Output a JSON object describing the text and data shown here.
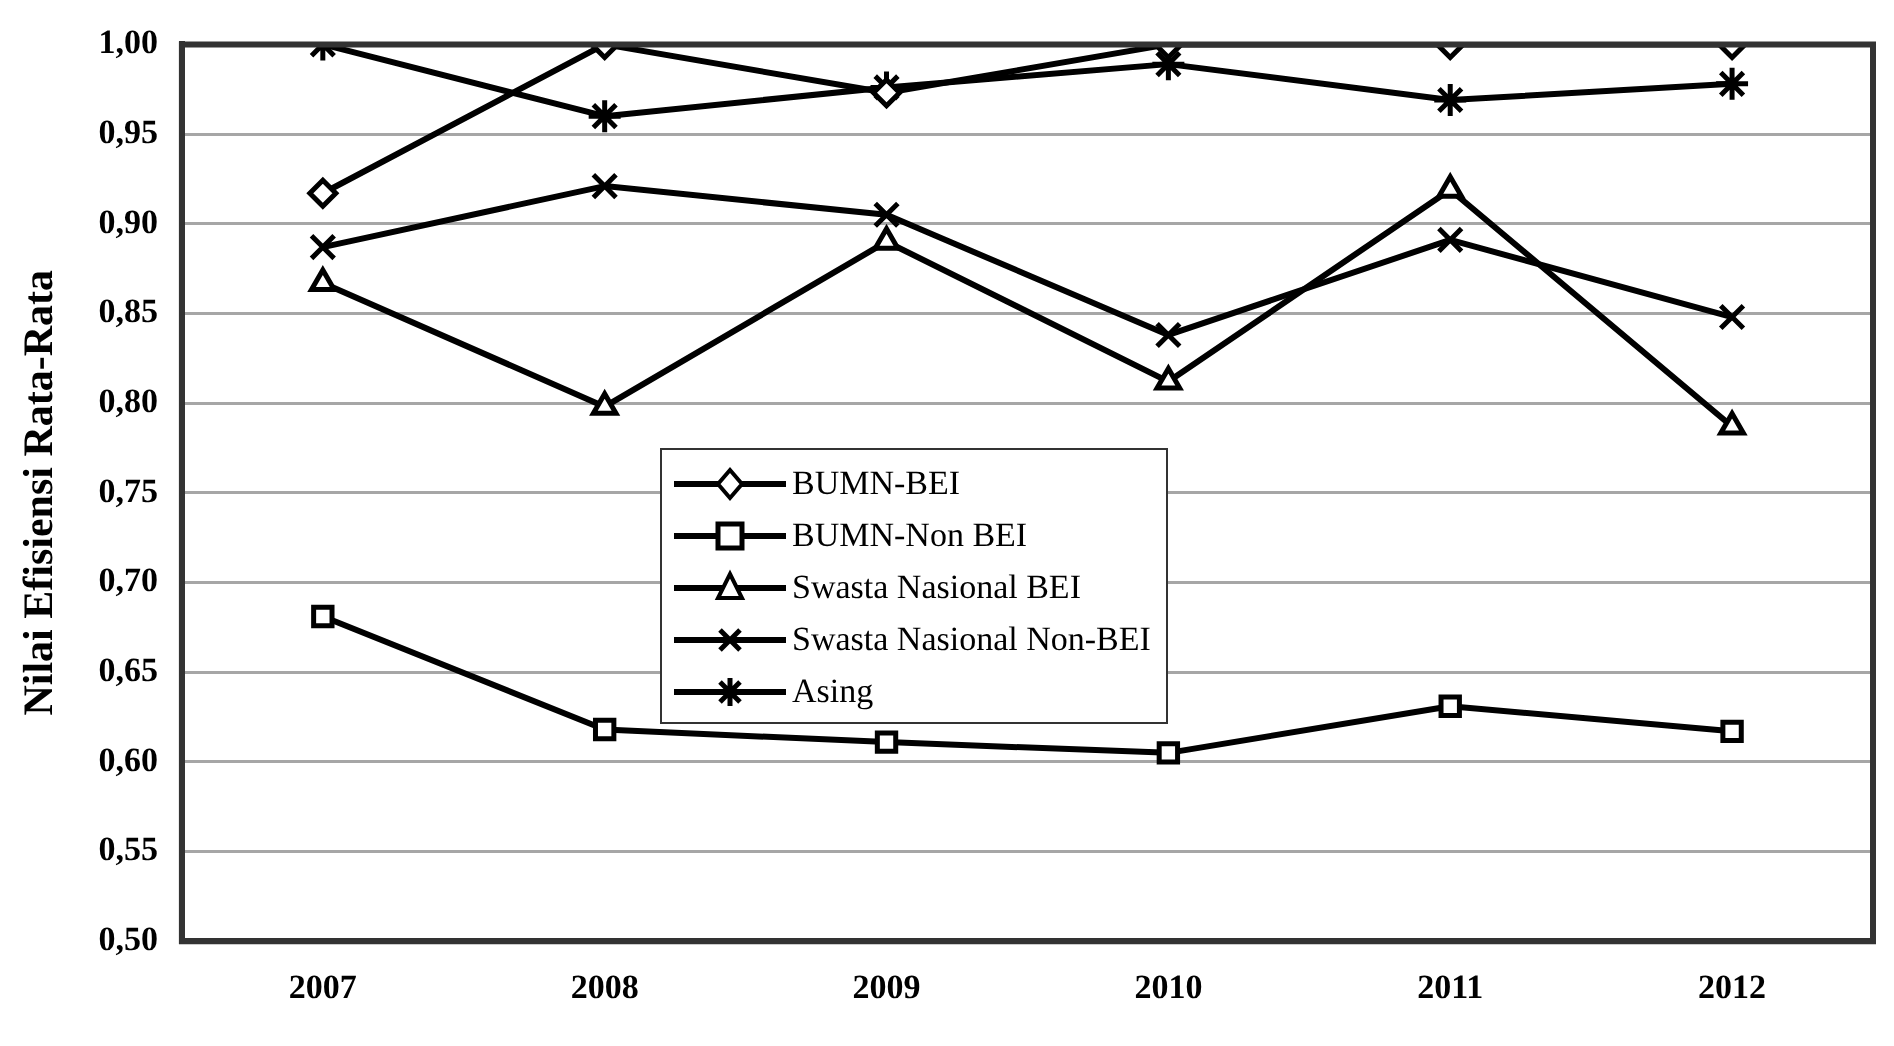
{
  "chart_data": {
    "type": "line",
    "ylabel": "Nilai Efisiensi Rata-Rata",
    "categories": [
      "2007",
      "2008",
      "2009",
      "2010",
      "2011",
      "2012"
    ],
    "series": [
      {
        "name": "BUMN-BEI",
        "color": "#000000",
        "marker": "diamond",
        "values": [
          0.917,
          1.0,
          0.973,
          1.0,
          1.0,
          1.0
        ]
      },
      {
        "name": "BUMN-Non BEI",
        "color": "#000000",
        "marker": "square",
        "values": [
          0.681,
          0.618,
          0.611,
          0.605,
          0.631,
          0.617
        ]
      },
      {
        "name": "Swasta Nasional BEI",
        "color": "#000000",
        "marker": "triangle",
        "values": [
          0.867,
          0.798,
          0.89,
          0.812,
          0.919,
          0.787
        ]
      },
      {
        "name": "Swasta Nasional Non-BEI",
        "color": "#000000",
        "marker": "cross",
        "values": [
          0.887,
          0.921,
          0.905,
          0.838,
          0.891,
          0.848
        ]
      },
      {
        "name": "Asing",
        "color": "#000000",
        "marker": "cross",
        "values": [
          1.0,
          0.96,
          0.976,
          0.989,
          0.969,
          0.978
        ]
      }
    ],
    "ylim": [
      0.5,
      1.0
    ],
    "yticks": [
      {
        "value": 0.5,
        "label": "0,50"
      },
      {
        "value": 0.55,
        "label": "0,55"
      },
      {
        "value": 0.6,
        "label": "0,60"
      },
      {
        "value": 0.65,
        "label": "0,65"
      },
      {
        "value": 0.7,
        "label": "0,70"
      },
      {
        "value": 0.75,
        "label": "0,75"
      },
      {
        "value": 0.8,
        "label": "0,80"
      },
      {
        "value": 0.85,
        "label": "0,85"
      },
      {
        "value": 0.9,
        "label": "0,90"
      },
      {
        "value": 0.95,
        "label": "0,95"
      },
      {
        "value": 1.0,
        "label": "1,00"
      }
    ],
    "grid": "y",
    "legend": "center",
    "line_style": "solid"
  }
}
